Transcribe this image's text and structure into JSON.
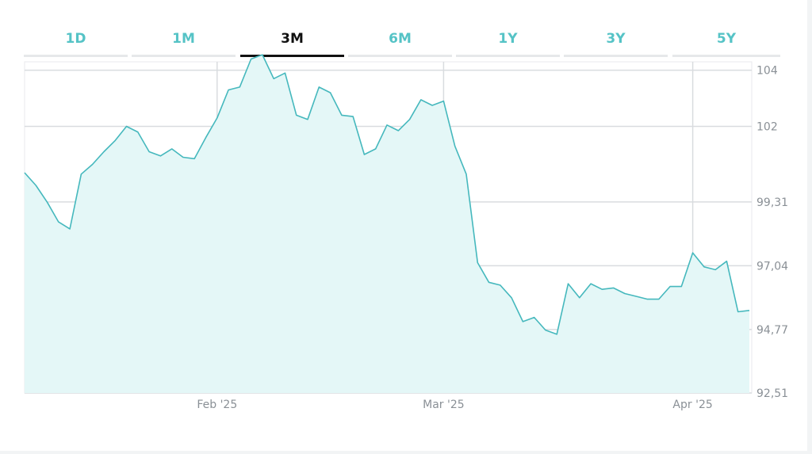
{
  "colors": {
    "accent": "#55c3c6",
    "fill": "#e4f7f7",
    "line": "#45b8bd",
    "active_tab": "#111111",
    "grid": "#d9dcdf"
  },
  "tabs": [
    {
      "label": "1D",
      "active": false
    },
    {
      "label": "1M",
      "active": false
    },
    {
      "label": "3M",
      "active": true
    },
    {
      "label": "6M",
      "active": false
    },
    {
      "label": "1Y",
      "active": false
    },
    {
      "label": "3Y",
      "active": false
    },
    {
      "label": "5Y",
      "active": false
    }
  ],
  "chart_data": {
    "type": "area",
    "y_ticks": [
      "92,51",
      "94,77",
      "97,04",
      "99,31",
      "102",
      "104"
    ],
    "ylim": [
      92.51,
      104.3
    ],
    "x_ticks": [
      {
        "label": "Feb '25",
        "index": 17
      },
      {
        "label": "Mar '25",
        "index": 37
      },
      {
        "label": "Apr '25",
        "index": 59
      }
    ],
    "grid": true,
    "series": [
      {
        "values": [
          100.35,
          99.9,
          99.3,
          98.6,
          98.35,
          100.3,
          100.65,
          101.1,
          101.5,
          102.0,
          101.8,
          101.1,
          100.95,
          101.2,
          100.9,
          100.85,
          101.6,
          102.3,
          103.3,
          103.4,
          104.4,
          104.55,
          103.7,
          103.9,
          102.4,
          102.25,
          103.4,
          103.2,
          102.4,
          102.35,
          101.0,
          101.2,
          102.05,
          101.85,
          102.25,
          102.95,
          102.75,
          102.9,
          101.3,
          100.3,
          97.15,
          96.45,
          96.35,
          95.9,
          95.05,
          95.2,
          94.75,
          94.6,
          96.4,
          95.9,
          96.4,
          96.2,
          96.25,
          96.05,
          95.95,
          95.85,
          95.85,
          96.3,
          96.3,
          97.5,
          97.0,
          96.9,
          97.2,
          95.4,
          95.45
        ]
      }
    ]
  }
}
